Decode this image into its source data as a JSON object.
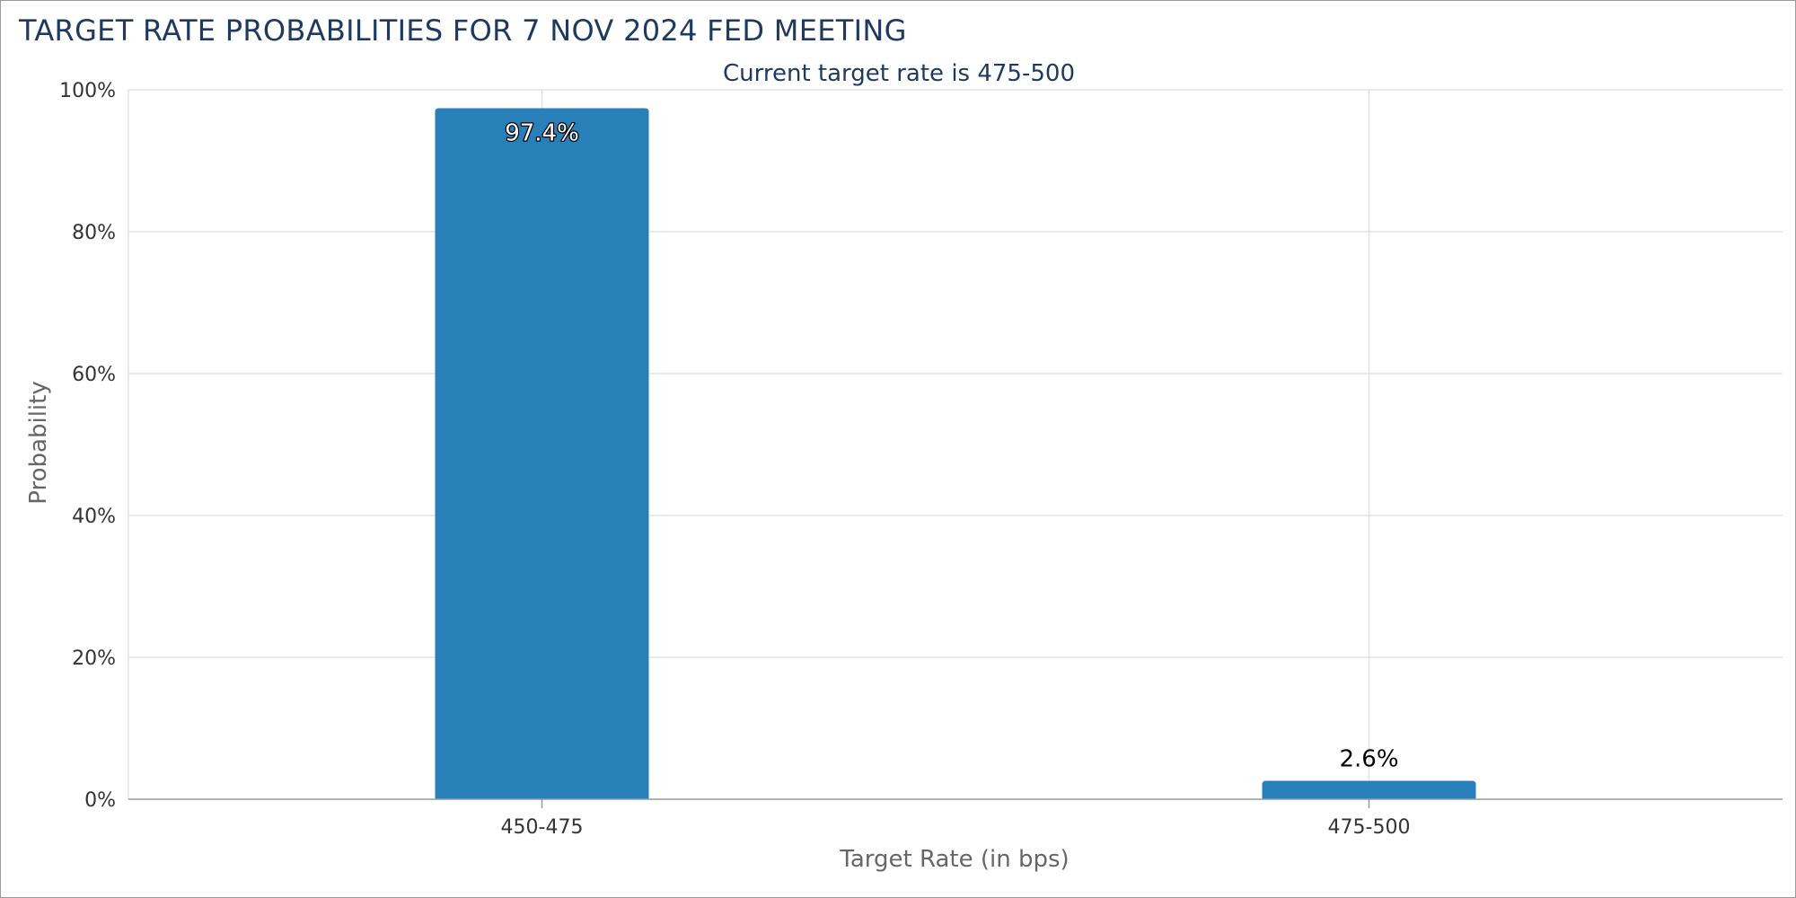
{
  "title": "TARGET RATE PROBABILITIES FOR 7 NOV 2024 FED MEETING",
  "chart_data": {
    "type": "bar",
    "subtitle": "Current target rate is 475-500",
    "xlabel": "Target Rate (in bps)",
    "ylabel": "Probability",
    "categories": [
      "450-475",
      "475-500"
    ],
    "values": [
      97.4,
      2.6
    ],
    "data_labels": [
      "97.4%",
      "2.6%"
    ],
    "ylim": [
      0,
      100
    ],
    "yticks": [
      0,
      20,
      40,
      60,
      80,
      100
    ],
    "ytick_labels": [
      "0%",
      "20%",
      "40%",
      "60%",
      "80%",
      "100%"
    ],
    "grid": true,
    "legend": "none",
    "colors": {
      "bar": "#2980b9",
      "title": "#1f3a60",
      "axis_text": "#333333",
      "axis_title": "#666666",
      "grid": "#dddddd"
    }
  }
}
